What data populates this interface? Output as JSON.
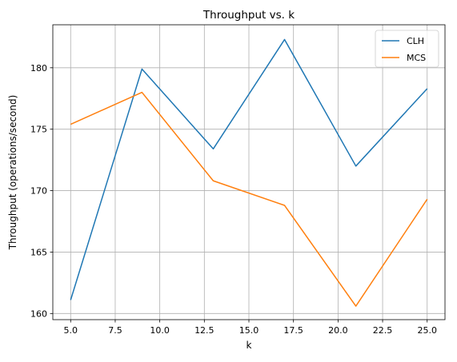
{
  "chart_data": {
    "type": "line",
    "title": "Throughput vs. k",
    "xlabel": "k",
    "ylabel": "Throughput (operations/second)",
    "x": [
      5,
      9,
      13,
      17,
      21,
      25
    ],
    "series": [
      {
        "name": "CLH",
        "color": "#1f77b4",
        "values": [
          161.1,
          179.9,
          173.4,
          182.3,
          172.0,
          178.3
        ]
      },
      {
        "name": "MCS",
        "color": "#ff7f0e",
        "values": [
          175.4,
          178.0,
          170.8,
          168.8,
          160.6,
          169.3
        ]
      }
    ],
    "xlim": [
      4.0,
      26.0
    ],
    "ylim": [
      159.5,
      183.5
    ],
    "xticks": [
      5.0,
      7.5,
      10.0,
      12.5,
      15.0,
      17.5,
      20.0,
      22.5,
      25.0
    ],
    "xtick_labels": [
      "5.0",
      "7.5",
      "10.0",
      "12.5",
      "15.0",
      "17.5",
      "20.0",
      "22.5",
      "25.0"
    ],
    "yticks": [
      160,
      165,
      170,
      175,
      180
    ],
    "ytick_labels": [
      "160",
      "165",
      "170",
      "175",
      "180"
    ],
    "grid": true,
    "legend_position": "top-right"
  }
}
